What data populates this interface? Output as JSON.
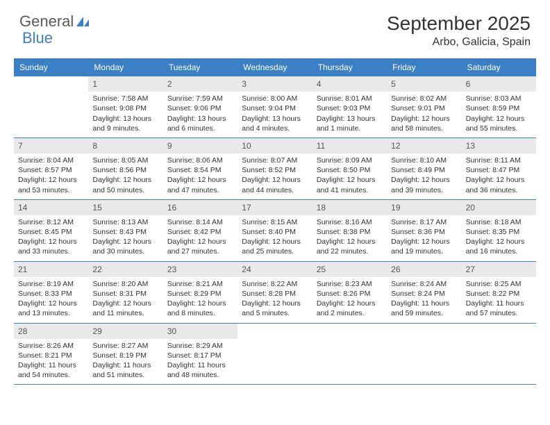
{
  "logo": {
    "text_a": "General",
    "text_b": "Blue",
    "color_a": "#5a5a5a",
    "color_b": "#3b7fc4"
  },
  "title": "September 2025",
  "location": "Arbo, Galicia, Spain",
  "colors": {
    "header_bg": "#3b7fc4",
    "header_text": "#ffffff",
    "daynum_bg": "#e9e9e9",
    "daynum_text": "#555555",
    "cell_text": "#333333",
    "week_border": "#3b7fc4",
    "page_bg": "#ffffff"
  },
  "typography": {
    "title_fontsize": 28,
    "location_fontsize": 16,
    "dayhead_fontsize": 12,
    "daynum_fontsize": 12,
    "cell_fontsize": 10.5
  },
  "day_names": [
    "Sunday",
    "Monday",
    "Tuesday",
    "Wednesday",
    "Thursday",
    "Friday",
    "Saturday"
  ],
  "weeks": [
    [
      null,
      {
        "n": "1",
        "sr": "Sunrise: 7:58 AM",
        "ss": "Sunset: 9:08 PM",
        "dl": "Daylight: 13 hours and 9 minutes."
      },
      {
        "n": "2",
        "sr": "Sunrise: 7:59 AM",
        "ss": "Sunset: 9:06 PM",
        "dl": "Daylight: 13 hours and 6 minutes."
      },
      {
        "n": "3",
        "sr": "Sunrise: 8:00 AM",
        "ss": "Sunset: 9:04 PM",
        "dl": "Daylight: 13 hours and 4 minutes."
      },
      {
        "n": "4",
        "sr": "Sunrise: 8:01 AM",
        "ss": "Sunset: 9:03 PM",
        "dl": "Daylight: 13 hours and 1 minute."
      },
      {
        "n": "5",
        "sr": "Sunrise: 8:02 AM",
        "ss": "Sunset: 9:01 PM",
        "dl": "Daylight: 12 hours and 58 minutes."
      },
      {
        "n": "6",
        "sr": "Sunrise: 8:03 AM",
        "ss": "Sunset: 8:59 PM",
        "dl": "Daylight: 12 hours and 55 minutes."
      }
    ],
    [
      {
        "n": "7",
        "sr": "Sunrise: 8:04 AM",
        "ss": "Sunset: 8:57 PM",
        "dl": "Daylight: 12 hours and 53 minutes."
      },
      {
        "n": "8",
        "sr": "Sunrise: 8:05 AM",
        "ss": "Sunset: 8:56 PM",
        "dl": "Daylight: 12 hours and 50 minutes."
      },
      {
        "n": "9",
        "sr": "Sunrise: 8:06 AM",
        "ss": "Sunset: 8:54 PM",
        "dl": "Daylight: 12 hours and 47 minutes."
      },
      {
        "n": "10",
        "sr": "Sunrise: 8:07 AM",
        "ss": "Sunset: 8:52 PM",
        "dl": "Daylight: 12 hours and 44 minutes."
      },
      {
        "n": "11",
        "sr": "Sunrise: 8:09 AM",
        "ss": "Sunset: 8:50 PM",
        "dl": "Daylight: 12 hours and 41 minutes."
      },
      {
        "n": "12",
        "sr": "Sunrise: 8:10 AM",
        "ss": "Sunset: 8:49 PM",
        "dl": "Daylight: 12 hours and 39 minutes."
      },
      {
        "n": "13",
        "sr": "Sunrise: 8:11 AM",
        "ss": "Sunset: 8:47 PM",
        "dl": "Daylight: 12 hours and 36 minutes."
      }
    ],
    [
      {
        "n": "14",
        "sr": "Sunrise: 8:12 AM",
        "ss": "Sunset: 8:45 PM",
        "dl": "Daylight: 12 hours and 33 minutes."
      },
      {
        "n": "15",
        "sr": "Sunrise: 8:13 AM",
        "ss": "Sunset: 8:43 PM",
        "dl": "Daylight: 12 hours and 30 minutes."
      },
      {
        "n": "16",
        "sr": "Sunrise: 8:14 AM",
        "ss": "Sunset: 8:42 PM",
        "dl": "Daylight: 12 hours and 27 minutes."
      },
      {
        "n": "17",
        "sr": "Sunrise: 8:15 AM",
        "ss": "Sunset: 8:40 PM",
        "dl": "Daylight: 12 hours and 25 minutes."
      },
      {
        "n": "18",
        "sr": "Sunrise: 8:16 AM",
        "ss": "Sunset: 8:38 PM",
        "dl": "Daylight: 12 hours and 22 minutes."
      },
      {
        "n": "19",
        "sr": "Sunrise: 8:17 AM",
        "ss": "Sunset: 8:36 PM",
        "dl": "Daylight: 12 hours and 19 minutes."
      },
      {
        "n": "20",
        "sr": "Sunrise: 8:18 AM",
        "ss": "Sunset: 8:35 PM",
        "dl": "Daylight: 12 hours and 16 minutes."
      }
    ],
    [
      {
        "n": "21",
        "sr": "Sunrise: 8:19 AM",
        "ss": "Sunset: 8:33 PM",
        "dl": "Daylight: 12 hours and 13 minutes."
      },
      {
        "n": "22",
        "sr": "Sunrise: 8:20 AM",
        "ss": "Sunset: 8:31 PM",
        "dl": "Daylight: 12 hours and 11 minutes."
      },
      {
        "n": "23",
        "sr": "Sunrise: 8:21 AM",
        "ss": "Sunset: 8:29 PM",
        "dl": "Daylight: 12 hours and 8 minutes."
      },
      {
        "n": "24",
        "sr": "Sunrise: 8:22 AM",
        "ss": "Sunset: 8:28 PM",
        "dl": "Daylight: 12 hours and 5 minutes."
      },
      {
        "n": "25",
        "sr": "Sunrise: 8:23 AM",
        "ss": "Sunset: 8:26 PM",
        "dl": "Daylight: 12 hours and 2 minutes."
      },
      {
        "n": "26",
        "sr": "Sunrise: 8:24 AM",
        "ss": "Sunset: 8:24 PM",
        "dl": "Daylight: 11 hours and 59 minutes."
      },
      {
        "n": "27",
        "sr": "Sunrise: 8:25 AM",
        "ss": "Sunset: 8:22 PM",
        "dl": "Daylight: 11 hours and 57 minutes."
      }
    ],
    [
      {
        "n": "28",
        "sr": "Sunrise: 8:26 AM",
        "ss": "Sunset: 8:21 PM",
        "dl": "Daylight: 11 hours and 54 minutes."
      },
      {
        "n": "29",
        "sr": "Sunrise: 8:27 AM",
        "ss": "Sunset: 8:19 PM",
        "dl": "Daylight: 11 hours and 51 minutes."
      },
      {
        "n": "30",
        "sr": "Sunrise: 8:29 AM",
        "ss": "Sunset: 8:17 PM",
        "dl": "Daylight: 11 hours and 48 minutes."
      },
      null,
      null,
      null,
      null
    ]
  ]
}
